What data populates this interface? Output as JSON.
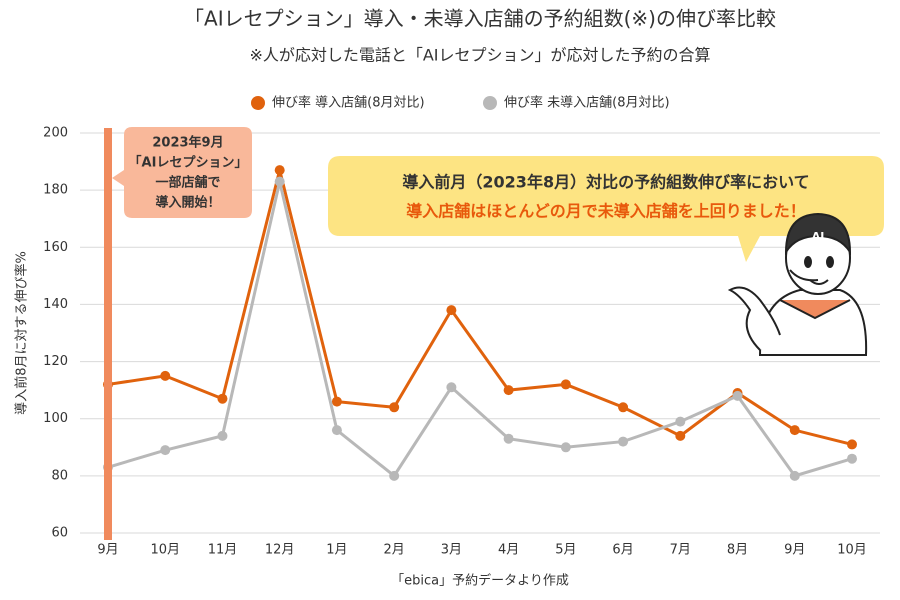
{
  "chart_data": {
    "type": "line",
    "title": "「AIレセプション」導入・未導入店舗の予約組数(※)の伸び率比較",
    "subtitle": "※人が応対した電話と「AIレセプション」が応対した予約の合算",
    "y_label": "導入前8月に対する伸び率%",
    "source": "「ebica」予約データより作成",
    "categories": [
      "9月",
      "10月",
      "11月",
      "12月",
      "1月",
      "2月",
      "3月",
      "4月",
      "5月",
      "6月",
      "7月",
      "8月",
      "9月",
      "10月"
    ],
    "series": [
      {
        "name": "伸び率 導入店舗(8月対比)",
        "color": "#e0620d",
        "values": [
          112,
          115,
          107,
          187,
          106,
          104,
          138,
          110,
          112,
          104,
          94,
          109,
          96,
          91
        ]
      },
      {
        "name": "伸び率 未導入店舗(8月対比)",
        "color": "#b8b8b8",
        "values": [
          83,
          89,
          94,
          183,
          96,
          80,
          111,
          93,
          90,
          92,
          99,
          108,
          80,
          86
        ]
      }
    ],
    "ylim": [
      60,
      200
    ],
    "yticks": [
      60,
      80,
      100,
      120,
      140,
      160,
      180,
      200
    ],
    "grid": true,
    "annotations": {
      "launch": [
        "2023年9月",
        "「AIレセプション」",
        "一部店舗で",
        "導入開始！"
      ],
      "callout": [
        "導入前月（2023年8月）対比の予約組数伸び率において",
        "導入店舗はほとんどの月で未導入店舗を上回りました！"
      ],
      "badge": "AI"
    }
  }
}
